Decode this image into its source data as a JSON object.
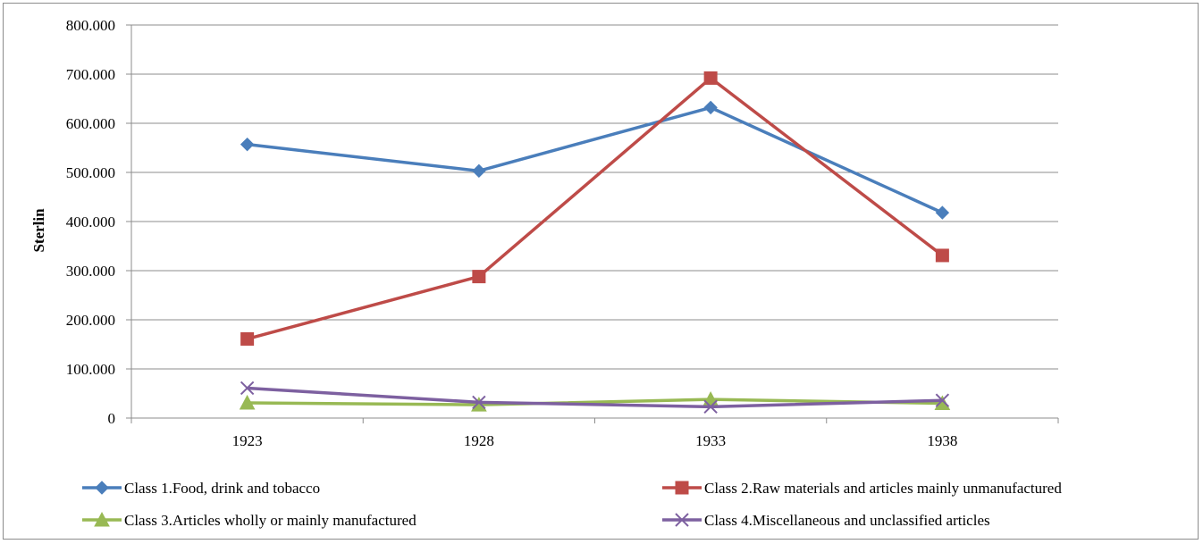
{
  "chart_data": {
    "type": "line",
    "title": "",
    "xlabel": "",
    "ylabel": "Sterlin",
    "categories": [
      "1923",
      "1928",
      "1933",
      "1938"
    ],
    "ylim": [
      0,
      800000
    ],
    "yticks": [
      0,
      100000,
      200000,
      300000,
      400000,
      500000,
      600000,
      700000,
      800000
    ],
    "ytick_labels": [
      "0",
      "100.000",
      "200.000",
      "300.000",
      "400.000",
      "500.000",
      "600.000",
      "700.000",
      "800.000"
    ],
    "grid": true,
    "legend_position": "bottom",
    "series": [
      {
        "name": "Class 1.Food, drink and tobacco",
        "values": [
          557000,
          503000,
          632000,
          418000
        ],
        "color": "#4a7ebb",
        "marker": "diamond"
      },
      {
        "name": "Class 2.Raw materials and articles mainly unmanufactured",
        "values": [
          161000,
          288000,
          692000,
          331000
        ],
        "color": "#be4b48",
        "marker": "square"
      },
      {
        "name": "Class 3.Articles wholly or mainly manufactured",
        "values": [
          31000,
          27000,
          38000,
          30000
        ],
        "color": "#98b954",
        "marker": "triangle"
      },
      {
        "name": "Class 4.Miscellaneous and unclassified articles",
        "values": [
          61000,
          32000,
          23000,
          36000
        ],
        "color": "#7d60a0",
        "marker": "x"
      }
    ]
  }
}
